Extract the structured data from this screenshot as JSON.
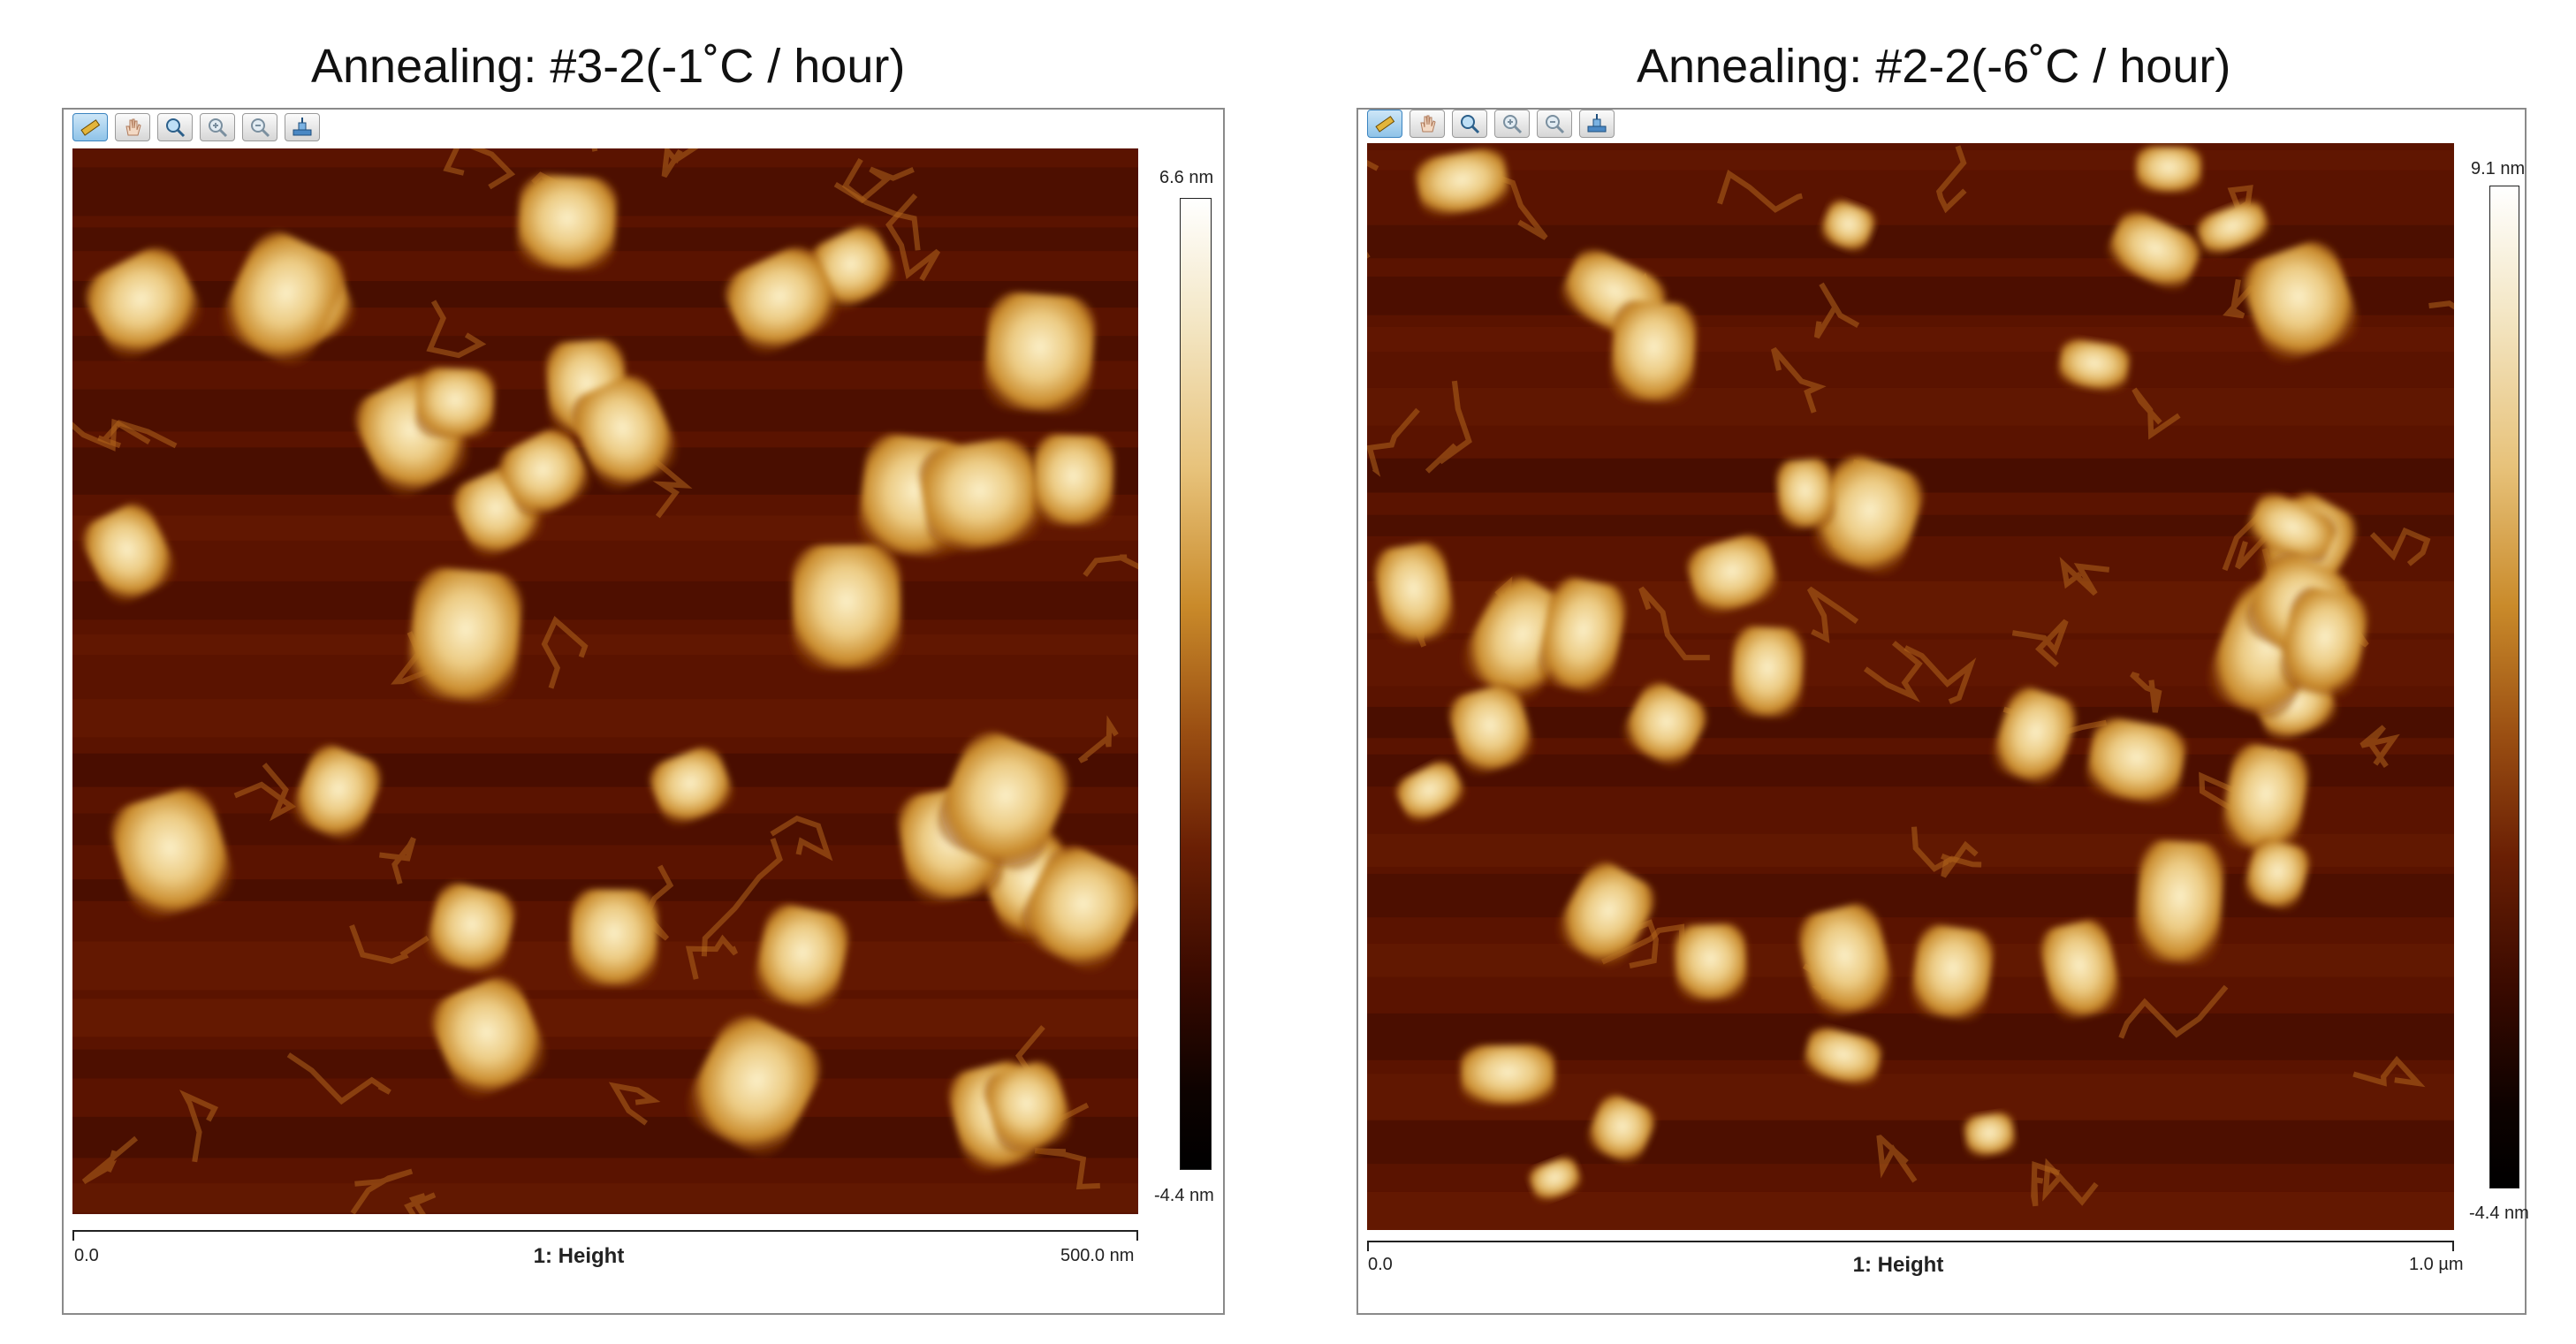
{
  "panels": [
    {
      "title": "Annealing: #3-2(-1˚C / hour)",
      "colorbar": {
        "max_label": "6.6 nm",
        "min_label": "-4.4 nm"
      },
      "axis": {
        "start_label": "0.0",
        "end_label": "500.0 nm"
      },
      "channel_label": "1: Height"
    },
    {
      "title": "Annealing: #2-2(-6˚C / hour)",
      "colorbar": {
        "max_label": "9.1 nm",
        "min_label": "-4.4 nm"
      },
      "axis": {
        "start_label": "0.0",
        "end_label": "1.0 µm"
      },
      "channel_label": "1: Height"
    }
  ],
  "toolbar_icons": [
    "ruler-icon",
    "hand-icon",
    "zoom-icon",
    "zoom-in-icon",
    "zoom-out-icon",
    "stage-icon"
  ],
  "colors": {
    "background": "#5a1300",
    "particle_light": "#f7e6b0",
    "particle_mid": "#c98a2a"
  }
}
